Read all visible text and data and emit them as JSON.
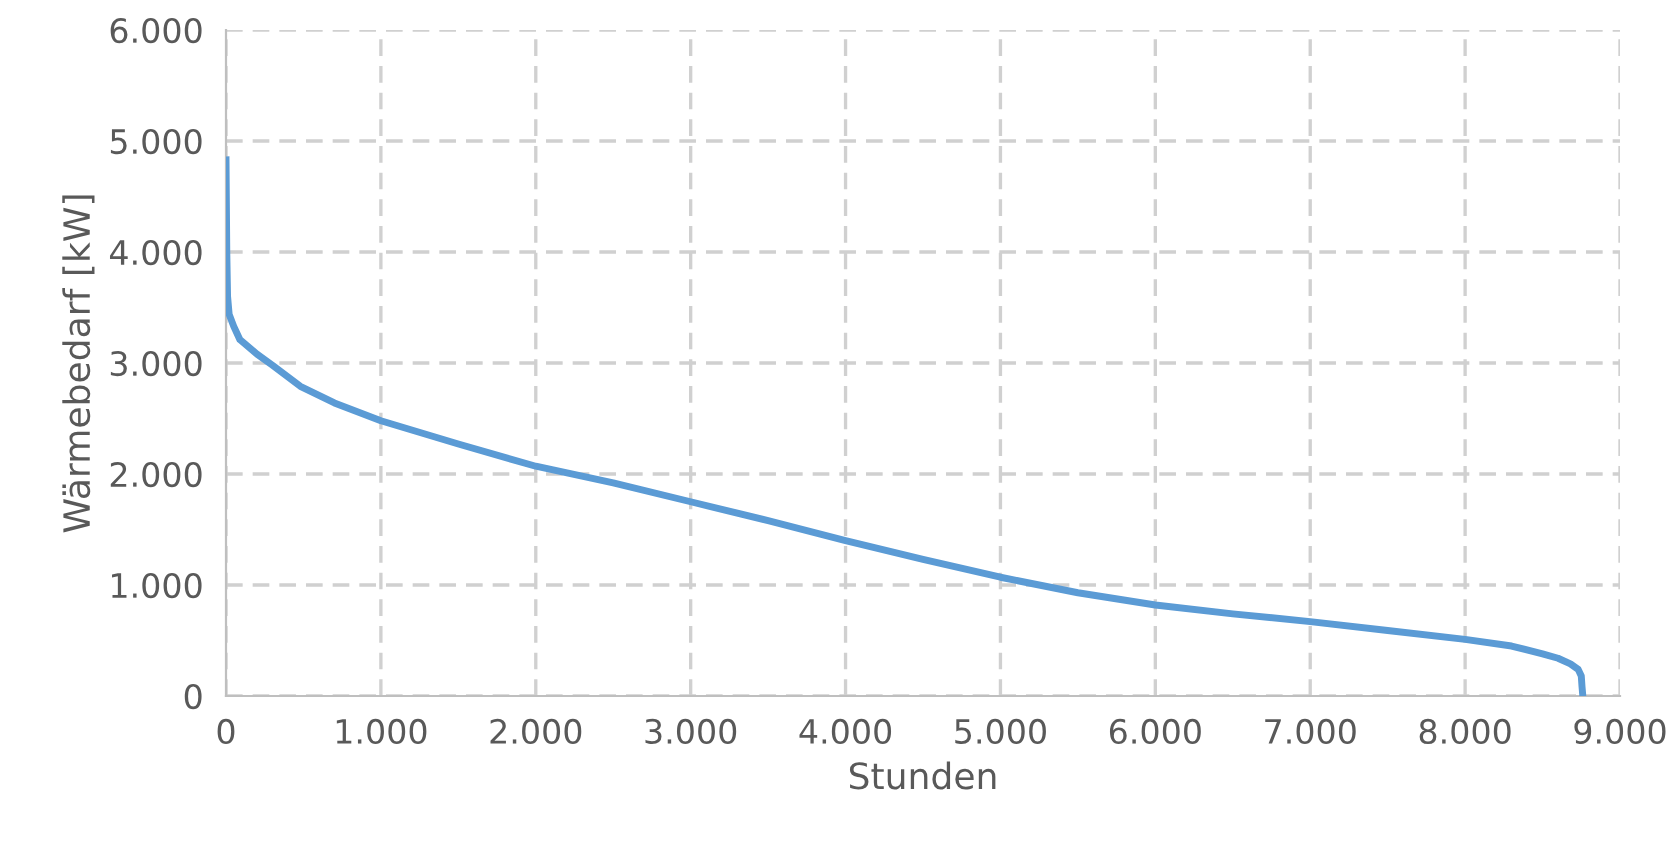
{
  "chart_data": {
    "type": "line",
    "xlabel": "Stunden",
    "ylabel": "Wärmebedarf [kW]",
    "series": [
      {
        "color": "#5b9bd5",
        "x": [
          0,
          5,
          10,
          20,
          50,
          90,
          200,
          300,
          480,
          700,
          1000,
          1500,
          2000,
          2500,
          3000,
          3500,
          4000,
          4500,
          5000,
          5500,
          6000,
          6500,
          7000,
          7500,
          8000,
          8300,
          8500,
          8600,
          8680,
          8730,
          8750,
          8755,
          8760
        ],
        "values": [
          4830,
          4000,
          3600,
          3440,
          3330,
          3210,
          3080,
          2980,
          2790,
          2640,
          2480,
          2270,
          2070,
          1920,
          1750,
          1580,
          1400,
          1230,
          1070,
          930,
          820,
          740,
          670,
          590,
          510,
          450,
          380,
          340,
          290,
          240,
          180,
          80,
          0
        ]
      }
    ],
    "xlim": [
      0,
      9000
    ],
    "ylim": [
      0,
      6000
    ],
    "xticks": [
      {
        "value": 0,
        "label": "0"
      },
      {
        "value": 1000,
        "label": "1.000"
      },
      {
        "value": 2000,
        "label": "2.000"
      },
      {
        "value": 3000,
        "label": "3.000"
      },
      {
        "value": 4000,
        "label": "4.000"
      },
      {
        "value": 5000,
        "label": "5.000"
      },
      {
        "value": 6000,
        "label": "6.000"
      },
      {
        "value": 7000,
        "label": "7.000"
      },
      {
        "value": 8000,
        "label": "8.000"
      },
      {
        "value": 9000,
        "label": "9.000"
      }
    ],
    "yticks": [
      {
        "value": 0,
        "label": "0"
      },
      {
        "value": 1000,
        "label": "1.000"
      },
      {
        "value": 2000,
        "label": "2.000"
      },
      {
        "value": 3000,
        "label": "3.000"
      },
      {
        "value": 4000,
        "label": "4.000"
      },
      {
        "value": 5000,
        "label": "5.000"
      },
      {
        "value": 6000,
        "label": "6.000"
      }
    ],
    "grid": true,
    "marker": "none",
    "line_style": "solid"
  }
}
